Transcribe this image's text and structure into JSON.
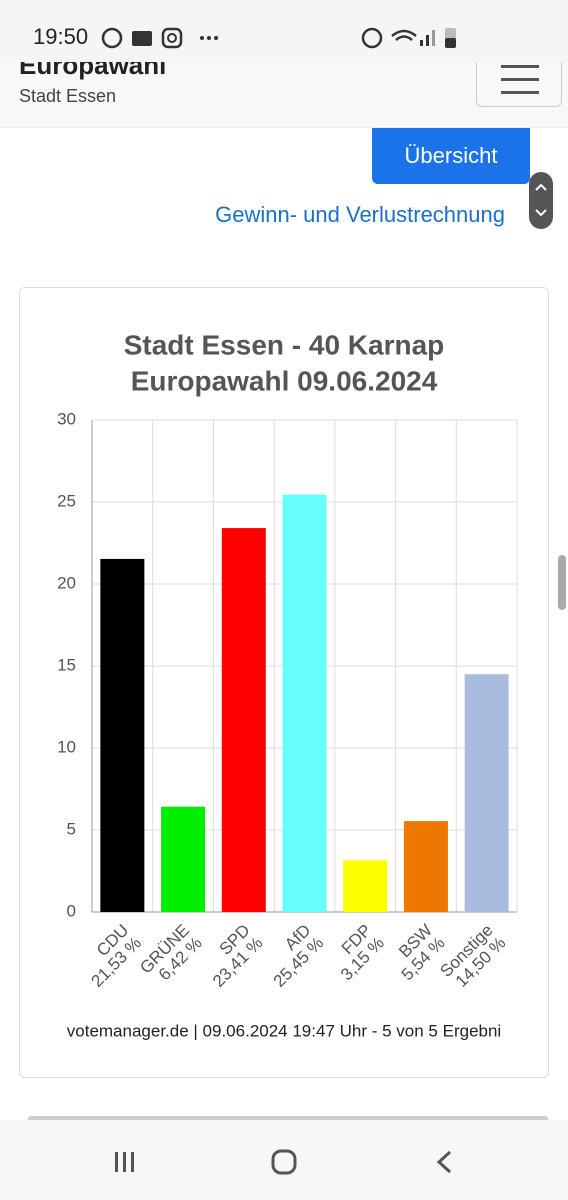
{
  "status_bar": {
    "time": "19:50"
  },
  "header": {
    "title": "Europawahl",
    "subtitle": "Stadt Essen"
  },
  "button": "Übersicht",
  "link": "Gewinn- und Verlustrechnung",
  "chart_data": {
    "type": "bar",
    "title": [
      "Stadt Essen - 40 Karnap",
      "Europawahl 09.06.2024"
    ],
    "categories": [
      "CDU",
      "GRÜNE",
      "SPD",
      "AfD",
      "FDP",
      "BSW",
      "Sonstige"
    ],
    "values": [
      21.53,
      6.42,
      23.41,
      25.45,
      3.15,
      5.54,
      14.5
    ],
    "value_labels": [
      "21,53 %",
      "6,42 %",
      "23,41 %",
      "25,45 %",
      "3,15 %",
      "5,54 %",
      "14,50 %"
    ],
    "colors": [
      "#000000",
      "#00ee00",
      "#ff0000",
      "#66ffff",
      "#ffff00",
      "#ee7700",
      "#aabbe0"
    ],
    "ylim": [
      0,
      30
    ],
    "yticks": [
      0,
      5,
      10,
      15,
      20,
      25,
      30
    ],
    "grid": true,
    "footer": "votemanager.de | 09.06.2024 19:47 Uhr - 5 von 5 Ergebni"
  }
}
